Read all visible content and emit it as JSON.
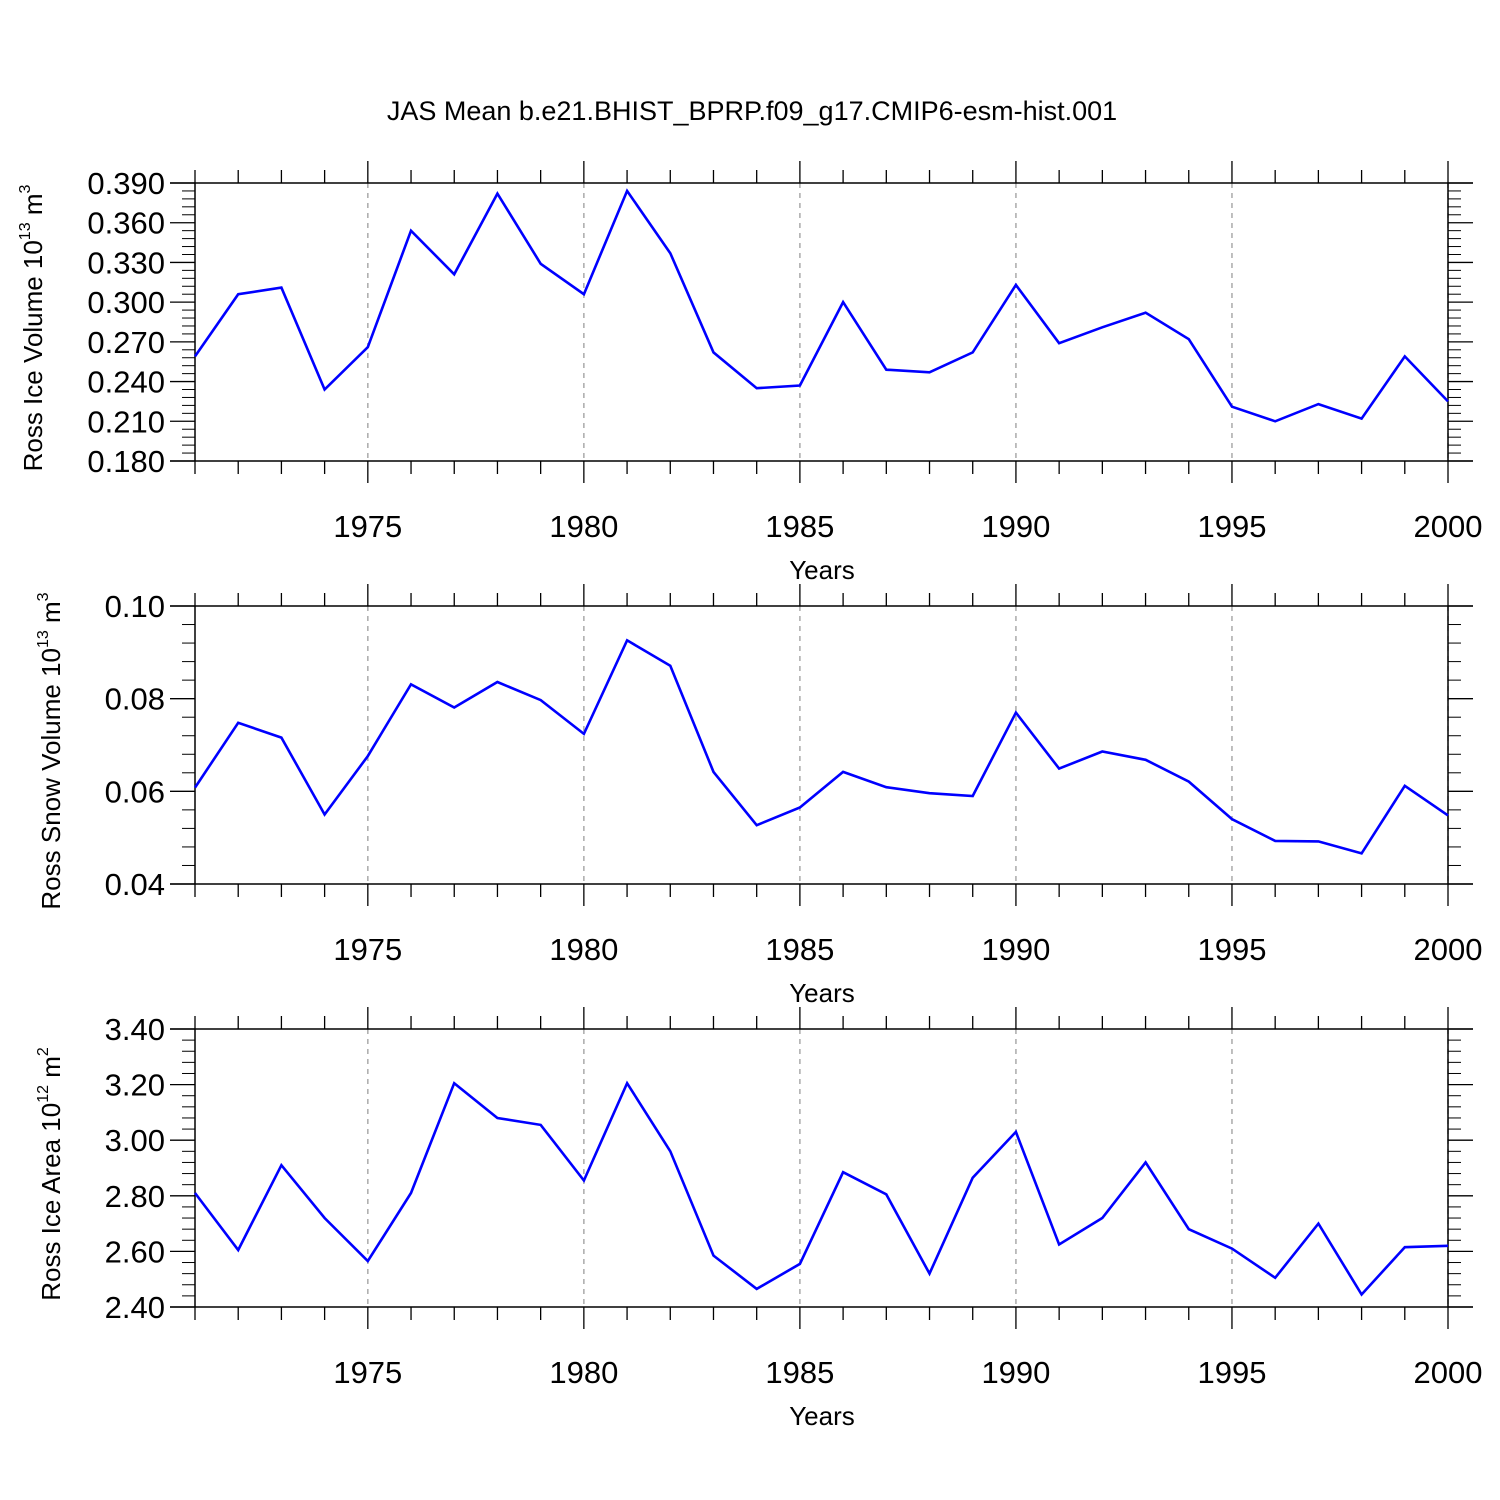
{
  "chart_data": [
    {
      "type": "line",
      "title": "JAS Mean b.e21.BHIST_BPRP.f09_g17.CMIP6-esm-hist.001",
      "xlabel": "Years",
      "ylabel": {
        "text": "Ross Ice Volume 10",
        "exp": "13",
        "unit": "m",
        "unit_exp": "3"
      },
      "xlim": [
        1971,
        2000
      ],
      "ylim": [
        0.18,
        0.39
      ],
      "xticks": [
        "1975",
        "1980",
        "1985",
        "1990",
        "1995",
        "2000"
      ],
      "yticks": [
        "0.180",
        "0.210",
        "0.240",
        "0.270",
        "0.300",
        "0.330",
        "0.360",
        "0.390"
      ],
      "grid": "dashed vertical at major x ticks",
      "series": [
        {
          "name": "Ross Ice Volume",
          "color": "#0000ff",
          "x": [
            1971,
            1972,
            1973,
            1974,
            1975,
            1976,
            1977,
            1978,
            1979,
            1980,
            1981,
            1982,
            1983,
            1984,
            1985,
            1986,
            1987,
            1988,
            1989,
            1990,
            1991,
            1992,
            1993,
            1994,
            1995,
            1996,
            1997,
            1998,
            1999,
            2000
          ],
          "values": [
            0.259,
            0.306,
            0.311,
            0.234,
            0.266,
            0.354,
            0.321,
            0.382,
            0.329,
            0.306,
            0.384,
            0.337,
            0.262,
            0.235,
            0.237,
            0.3,
            0.249,
            0.247,
            0.262,
            0.313,
            0.269,
            0.281,
            0.292,
            0.272,
            0.221,
            0.21,
            0.223,
            0.212,
            0.259,
            0.225
          ]
        }
      ]
    },
    {
      "type": "line",
      "xlabel": "Years",
      "ylabel": {
        "text": "Ross Snow Volume 10",
        "exp": "13",
        "unit": "m",
        "unit_exp": "3"
      },
      "xlim": [
        1971,
        2000
      ],
      "ylim": [
        0.04,
        0.1
      ],
      "xticks": [
        "1975",
        "1980",
        "1985",
        "1990",
        "1995",
        "2000"
      ],
      "yticks": [
        "0.04",
        "0.06",
        "0.08",
        "0.10"
      ],
      "grid": "dashed vertical at major x ticks",
      "series": [
        {
          "name": "Ross Snow Volume",
          "color": "#0000ff",
          "x": [
            1971,
            1972,
            1973,
            1974,
            1975,
            1976,
            1977,
            1978,
            1979,
            1980,
            1981,
            1982,
            1983,
            1984,
            1985,
            1986,
            1987,
            1988,
            1989,
            1990,
            1991,
            1992,
            1993,
            1994,
            1995,
            1996,
            1997,
            1998,
            1999,
            2000
          ],
          "values": [
            0.0608,
            0.0748,
            0.0716,
            0.055,
            0.0676,
            0.0831,
            0.0781,
            0.0836,
            0.0797,
            0.0724,
            0.0926,
            0.0871,
            0.0642,
            0.0527,
            0.0565,
            0.0642,
            0.0609,
            0.0596,
            0.059,
            0.077,
            0.0649,
            0.0686,
            0.0668,
            0.0621,
            0.054,
            0.0493,
            0.0492,
            0.0466,
            0.0612,
            0.0548
          ]
        }
      ]
    },
    {
      "type": "line",
      "xlabel": "Years",
      "ylabel": {
        "text": "Ross Ice Area 10",
        "exp": "12",
        "unit": "m",
        "unit_exp": "2"
      },
      "xlim": [
        1971,
        2000
      ],
      "ylim": [
        2.4,
        3.4
      ],
      "xticks": [
        "1975",
        "1980",
        "1985",
        "1990",
        "1995",
        "2000"
      ],
      "yticks": [
        "2.40",
        "2.60",
        "2.80",
        "3.00",
        "3.20",
        "3.40"
      ],
      "grid": "dashed vertical at major x ticks",
      "series": [
        {
          "name": "Ross Ice Area",
          "color": "#0000ff",
          "x": [
            1971,
            1972,
            1973,
            1974,
            1975,
            1976,
            1977,
            1978,
            1979,
            1980,
            1981,
            1982,
            1983,
            1984,
            1985,
            1986,
            1987,
            1988,
            1989,
            1990,
            1991,
            1992,
            1993,
            1994,
            1995,
            1996,
            1997,
            1998,
            1999,
            2000
          ],
          "values": [
            2.81,
            2.605,
            2.91,
            2.72,
            2.565,
            2.81,
            3.205,
            3.08,
            3.055,
            2.855,
            3.205,
            2.96,
            2.585,
            2.465,
            2.555,
            2.885,
            2.805,
            2.52,
            2.865,
            3.03,
            2.625,
            2.72,
            2.92,
            2.68,
            2.61,
            2.505,
            2.7,
            2.445,
            2.615,
            2.62
          ]
        }
      ]
    }
  ]
}
